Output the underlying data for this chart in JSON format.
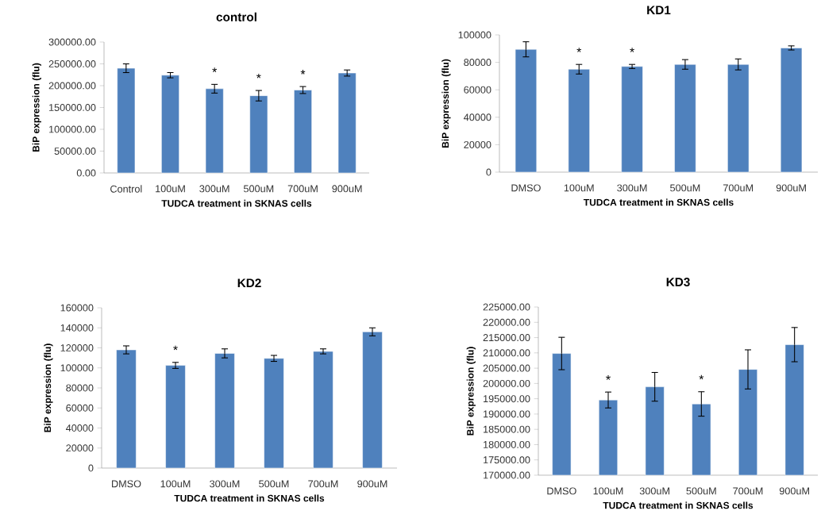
{
  "chart_data": [
    {
      "type": "bar",
      "title": "control",
      "xlabel": "TUDCA  treatment in SKNAS cells",
      "ylabel": "BiP expression  (flu)",
      "categories": [
        "Control",
        "100uM",
        "300uM",
        "500uM",
        "700uM",
        "900uM"
      ],
      "values": [
        240000,
        224000,
        193000,
        177000,
        190000,
        229000
      ],
      "errors": [
        10000,
        6000,
        10000,
        12000,
        8000,
        7000
      ],
      "color": "#4f81bd",
      "ylim": [
        0,
        300000
      ],
      "yticks": [
        {
          "value": 0,
          "label": "0.00"
        },
        {
          "value": 50000,
          "label": "50000.00"
        },
        {
          "value": 100000,
          "label": "100000.00"
        },
        {
          "value": 150000,
          "label": "150000.00"
        },
        {
          "value": 200000,
          "label": "200000.00"
        },
        {
          "value": 250000,
          "label": "250000.00"
        },
        {
          "value": 300000,
          "label": "300000.00"
        }
      ],
      "annotations": [
        {
          "text": "*",
          "x": "300uM",
          "y": 193000
        },
        {
          "text": "*",
          "x": "500uM",
          "y": 177000
        },
        {
          "text": "*",
          "x": "700uM",
          "y": 190000
        }
      ]
    },
    {
      "type": "bar",
      "title": "KD1",
      "xlabel": "TUDCA  treatment in SKNAS cells",
      "ylabel": "BiP expression  (flu)",
      "categories": [
        "DMSO",
        "100uM",
        "300uM",
        "500uM",
        "700uM",
        "900uM"
      ],
      "values": [
        89500,
        75000,
        77000,
        78500,
        78500,
        90500
      ],
      "errors": [
        5500,
        3500,
        1500,
        3500,
        4000,
        1500
      ],
      "color": "#4f81bd",
      "ylim": [
        0,
        100000
      ],
      "yticks": [
        0,
        20000,
        40000,
        60000,
        80000,
        100000
      ],
      "annotations": [
        {
          "text": "*",
          "x": "100uM",
          "y": 75000
        },
        {
          "text": "*",
          "x": "300uM",
          "y": 77000
        }
      ]
    },
    {
      "type": "bar",
      "title": "KD2",
      "xlabel": "TUDCA  treatment in SKNAS cells",
      "ylabel": "BiP expression  (flu)",
      "categories": [
        "DMSO",
        "100uM",
        "300uM",
        "500uM",
        "700uM",
        "900uM"
      ],
      "values": [
        118000,
        102500,
        114500,
        109500,
        116500,
        136000
      ],
      "errors": [
        4000,
        3000,
        4500,
        3000,
        2500,
        4000
      ],
      "color": "#4f81bd",
      "ylim": [
        0,
        160000
      ],
      "yticks": [
        0,
        20000,
        40000,
        60000,
        80000,
        100000,
        120000,
        140000,
        160000
      ],
      "annotations": [
        {
          "text": "*",
          "x": "100uM",
          "y": 102500
        }
      ]
    },
    {
      "type": "bar",
      "title": "KD3",
      "xlabel": "TUDCA  treatment in SKNAS cells",
      "ylabel": "BiP expression  (flu)",
      "categories": [
        "DMSO",
        "100uM",
        "300uM",
        "500uM",
        "700uM",
        "900uM"
      ],
      "values": [
        209800,
        194600,
        198900,
        193300,
        204600,
        212700
      ],
      "errors": [
        5300,
        2600,
        4700,
        4000,
        6400,
        5600
      ],
      "color": "#4f81bd",
      "ylim": [
        170000,
        225000
      ],
      "yticks": [
        {
          "value": 170000,
          "label": "170000.00"
        },
        {
          "value": 175000,
          "label": "175000.00"
        },
        {
          "value": 180000,
          "label": "180000.00"
        },
        {
          "value": 185000,
          "label": "185000.00"
        },
        {
          "value": 190000,
          "label": "190000.00"
        },
        {
          "value": 195000,
          "label": "195000.00"
        },
        {
          "value": 200000,
          "label": "200000.00"
        },
        {
          "value": 205000,
          "label": "205000.00"
        },
        {
          "value": 210000,
          "label": "210000.00"
        },
        {
          "value": 215000,
          "label": "215000.00"
        },
        {
          "value": 220000,
          "label": "220000.00"
        },
        {
          "value": 225000,
          "label": "225000.00"
        }
      ],
      "annotations": [
        {
          "text": "*",
          "x": "100uM",
          "y": 194600
        },
        {
          "text": "*",
          "x": "500uM",
          "y": 193300
        }
      ]
    }
  ]
}
